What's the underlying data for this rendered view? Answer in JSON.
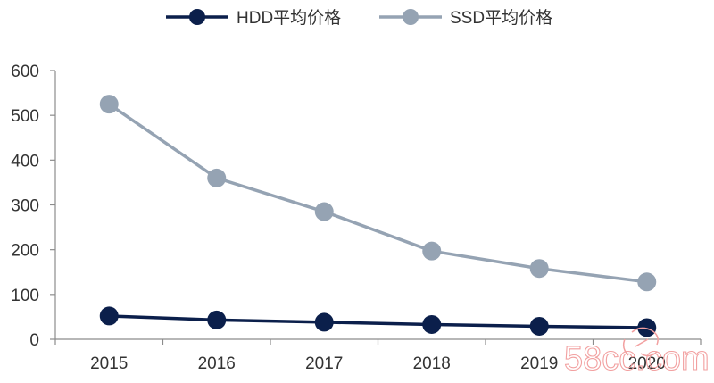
{
  "chart_data": {
    "type": "line",
    "title": "",
    "xlabel": "",
    "ylabel": "",
    "categories": [
      "2015",
      "2016",
      "2017",
      "2018",
      "2019",
      "2020"
    ],
    "series": [
      {
        "name": "HDD平均价格",
        "values": [
          52,
          43,
          38,
          33,
          29,
          26
        ],
        "color": "#0b1f4b"
      },
      {
        "name": "SSD平均价格",
        "values": [
          525,
          360,
          285,
          197,
          158,
          128
        ],
        "color": "#95a3b3"
      }
    ],
    "ylim": [
      0,
      600
    ],
    "yticks": [
      0,
      100,
      200,
      300,
      400,
      500,
      600
    ],
    "grid": false,
    "legend": "top-center"
  },
  "watermark": {
    "text": "58cc.com"
  }
}
